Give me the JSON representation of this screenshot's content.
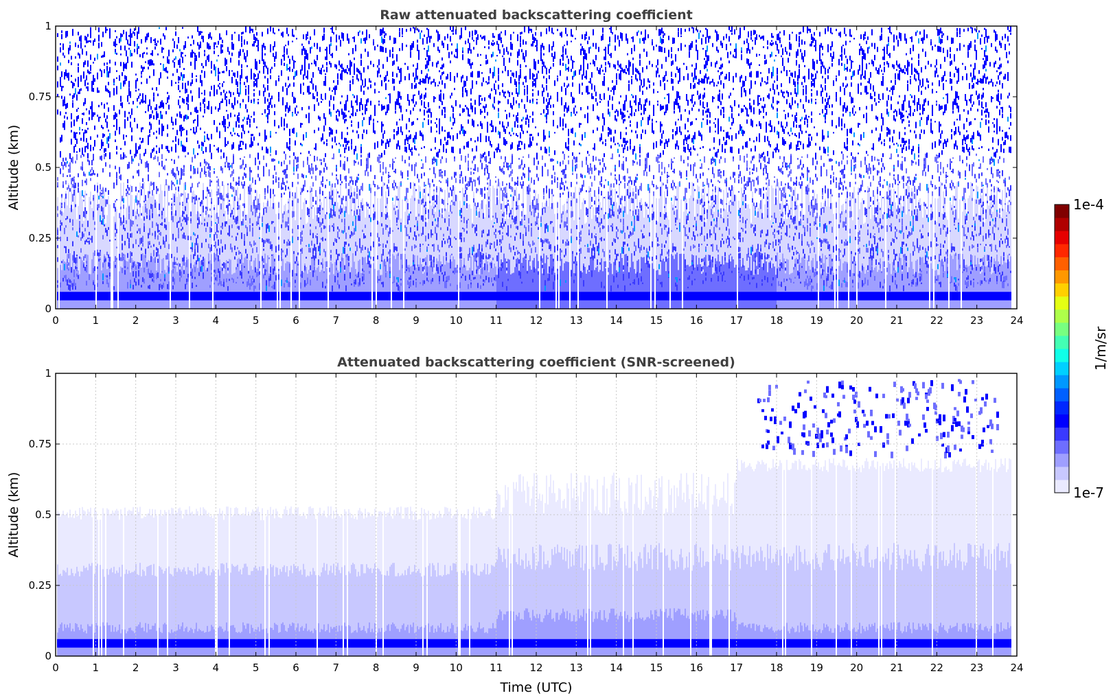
{
  "chart_data": [
    {
      "type": "heatmap",
      "panel": "raw",
      "title": "Raw attenuated backscattering coefficient",
      "xlabel": "",
      "ylabel": "Altitude (km)",
      "xlim": [
        0,
        24
      ],
      "ylim": [
        0,
        1
      ],
      "xticks": [
        "0",
        "1",
        "2",
        "3",
        "4",
        "5",
        "6",
        "7",
        "8",
        "9",
        "10",
        "11",
        "12",
        "13",
        "14",
        "15",
        "16",
        "17",
        "18",
        "19",
        "20",
        "21",
        "22",
        "23",
        "24"
      ],
      "yticks": [
        "0",
        "0.25",
        "0.5",
        "0.75",
        "1"
      ],
      "grid": false,
      "data_end_hour": 23.85,
      "features": [
        {
          "name": "strong surface layer",
          "altitude_km": [
            0.03,
            0.06
          ],
          "level": "high"
        },
        {
          "name": "noisy signal",
          "altitude_km": [
            0.0,
            1.0
          ],
          "level": "medium"
        }
      ]
    },
    {
      "type": "heatmap",
      "panel": "screened",
      "title": "Attenuated backscattering coefficient (SNR-screened)",
      "xlabel": "Time (UTC)",
      "ylabel": "Altitude (km)",
      "xlim": [
        0,
        24
      ],
      "ylim": [
        0,
        1
      ],
      "xticks": [
        "0",
        "1",
        "2",
        "3",
        "4",
        "5",
        "6",
        "7",
        "8",
        "9",
        "10",
        "11",
        "12",
        "13",
        "14",
        "15",
        "16",
        "17",
        "18",
        "19",
        "20",
        "21",
        "22",
        "23",
        "24"
      ],
      "yticks": [
        "0",
        "0.25",
        "0.5",
        "0.75",
        "1"
      ],
      "grid": true,
      "data_end_hour": 23.85,
      "features": [
        {
          "name": "surface layer",
          "altitude_km": [
            0.03,
            0.06
          ],
          "level": "high"
        },
        {
          "name": "boundary layer top (morning)",
          "altitude_km": 0.5,
          "hours": [
            0,
            11
          ]
        },
        {
          "name": "elevated layer (evening)",
          "altitude_km": [
            0.75,
            0.95
          ],
          "hours": [
            17.5,
            23.5
          ]
        }
      ]
    }
  ],
  "colorbar": {
    "label": "1/m/sr",
    "min_label": "1e-7",
    "max_label": "1e-4",
    "colormap": "jet-with-white-low",
    "colors": [
      "#eaeaff",
      "#c8c8ff",
      "#9f9fff",
      "#6e6eff",
      "#3a3aff",
      "#0000ff",
      "#0028ff",
      "#0060ff",
      "#0098ff",
      "#00d0ff",
      "#10ffe8",
      "#44ffb4",
      "#78ff80",
      "#aeff4a",
      "#e4ff14",
      "#ffd000",
      "#ff9800",
      "#ff6000",
      "#ff2800",
      "#e60000",
      "#b00000",
      "#800000"
    ]
  }
}
